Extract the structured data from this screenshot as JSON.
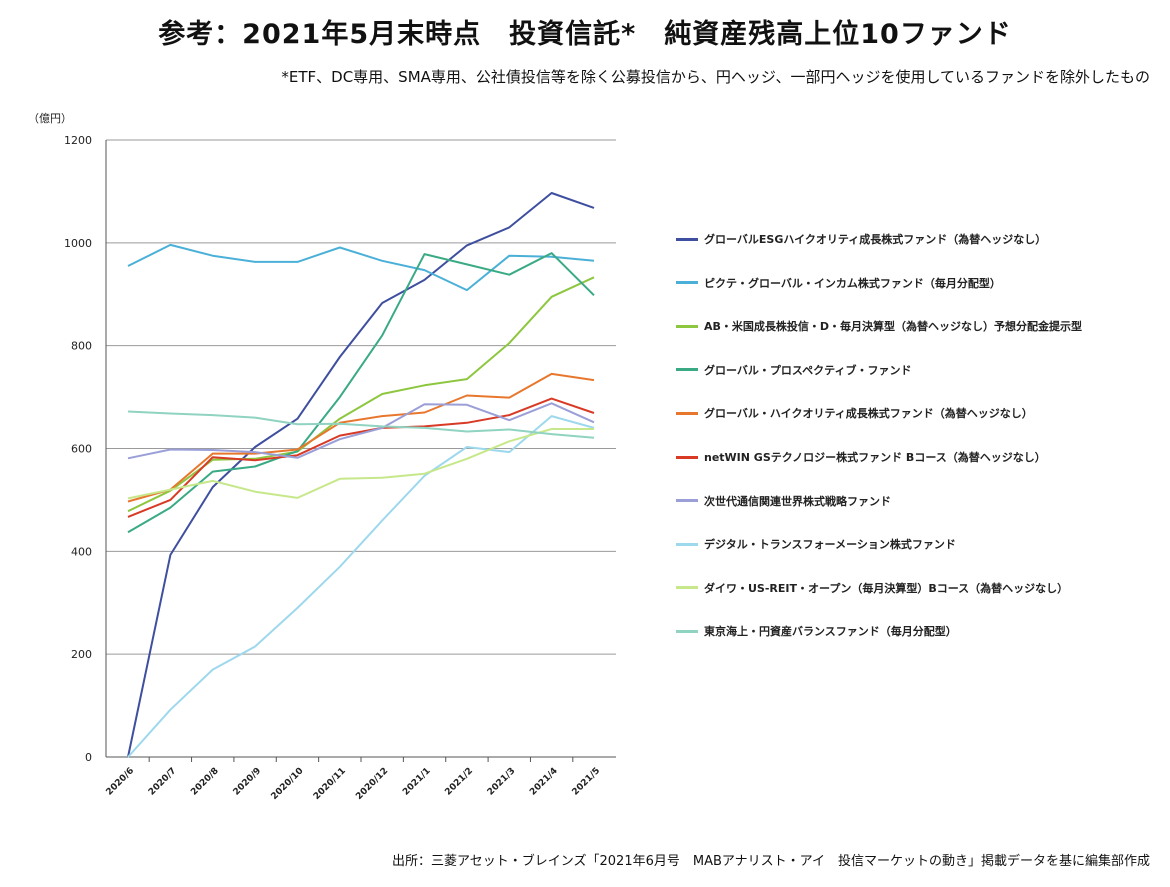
{
  "title": "参考：2021年5月末時点　投資信託*　純資産残高上位10ファンド",
  "subtitle": "*ETF、DC専用、SMA専用、公社債投信等を除く公募投信から、円ヘッジ、一部円ヘッジを使用しているファンドを除外したもの",
  "source": "出所：三菱アセット・ブレインズ「2021年6月号　MABアナリスト・アイ　投信マーケットの動き」掲載データを基に編集部作成",
  "chart_data": {
    "type": "line",
    "ylabel": "（億円）",
    "ylim": [
      0,
      1200
    ],
    "yticks": [
      0,
      200,
      400,
      600,
      800,
      1000,
      1200
    ],
    "grid": true,
    "legend_position": "right",
    "categories": [
      "2020/6",
      "2020/7",
      "2020/8",
      "2020/9",
      "2020/10",
      "2020/11",
      "2020/12",
      "2021/1",
      "2021/2",
      "2021/3",
      "2021/4",
      "2021/5"
    ],
    "series": [
      {
        "name": "グローバルESGハイクオリティ成長株式ファンド（為替ヘッジなし）",
        "color": "#3f4fa0",
        "values": [
          0,
          393,
          525,
          603,
          658,
          778,
          883,
          928,
          995,
          1030,
          1097,
          1068
        ]
      },
      {
        "name": "ピクテ・グローバル・インカム株式ファンド（毎月分配型）",
        "color": "#4bb0d8",
        "values": [
          955,
          996,
          975,
          963,
          963,
          991,
          965,
          947,
          908,
          975,
          973,
          965
        ]
      },
      {
        "name": "AB・米国成長株投信・D・毎月決算型（為替ヘッジなし）予想分配金提示型",
        "color": "#8dc63f",
        "values": [
          478,
          518,
          578,
          580,
          594,
          658,
          706,
          723,
          735,
          805,
          895,
          933
        ]
      },
      {
        "name": "グローバル・プロスペクティブ・ファンド",
        "color": "#3aaa85",
        "values": [
          437,
          485,
          555,
          565,
          595,
          700,
          820,
          978,
          958,
          938,
          980,
          898
        ]
      },
      {
        "name": "グローバル・ハイクオリティ成長株式ファンド（為替ヘッジなし）",
        "color": "#e8772e",
        "values": [
          497,
          520,
          590,
          590,
          598,
          650,
          663,
          670,
          703,
          699,
          745,
          733
        ]
      },
      {
        "name": "netWIN GSテクノロジー株式ファンド Bコース（為替ヘッジなし）",
        "color": "#d83a26",
        "values": [
          467,
          500,
          583,
          577,
          587,
          625,
          640,
          643,
          650,
          665,
          697,
          669
        ]
      },
      {
        "name": "次世代通信関連世界株式戦略ファンド",
        "color": "#9b9fd8",
        "values": [
          581,
          598,
          597,
          593,
          582,
          618,
          640,
          686,
          685,
          655,
          688,
          651
        ]
      },
      {
        "name": "デジタル・トランスフォーメーション株式ファンド",
        "color": "#9ed8ec",
        "values": [
          0,
          92,
          170,
          215,
          290,
          370,
          460,
          547,
          603,
          593,
          663,
          640
        ]
      },
      {
        "name": "ダイワ・US-REIT・オープン（毎月決算型）Bコース（為替ヘッジなし）",
        "color": "#c6e88a",
        "values": [
          503,
          520,
          537,
          516,
          504,
          541,
          543,
          551,
          580,
          614,
          638,
          638
        ]
      },
      {
        "name": "東京海上・円資産バランスファンド（毎月分配型）",
        "color": "#8fd3c0",
        "values": [
          672,
          668,
          665,
          660,
          647,
          648,
          643,
          640,
          633,
          637,
          628,
          621
        ]
      }
    ]
  }
}
